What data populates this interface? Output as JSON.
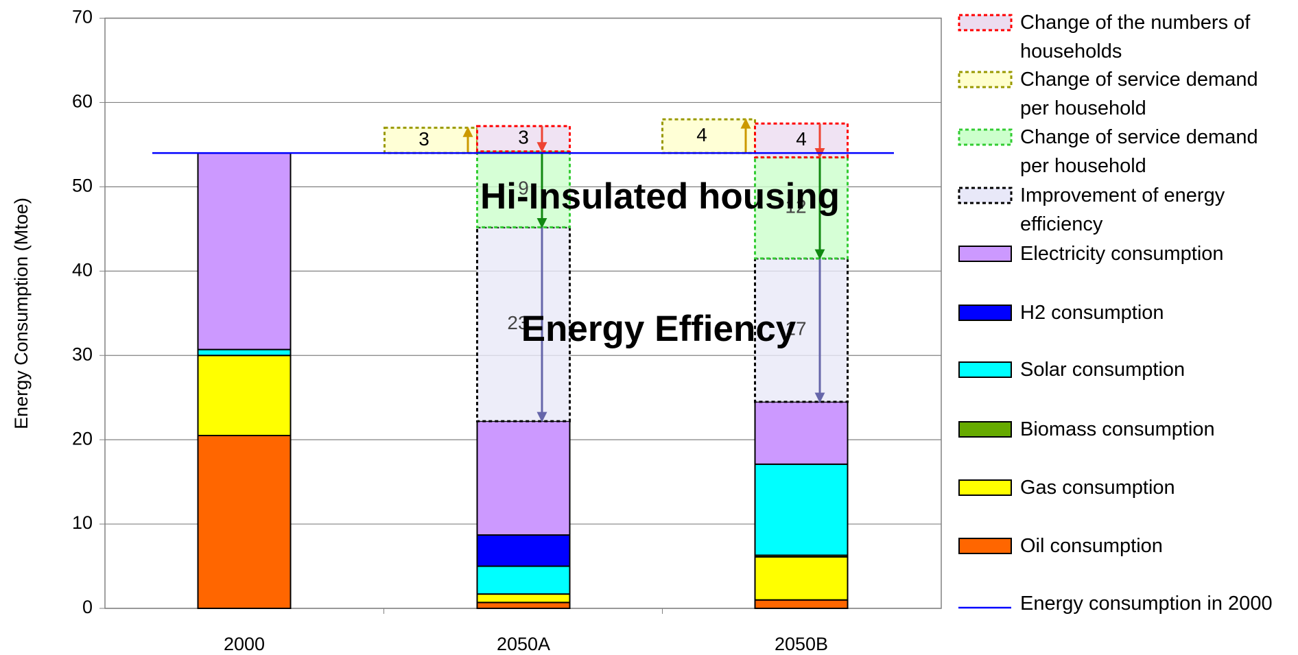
{
  "chart_data": {
    "type": "bar",
    "ylabel": "Energy Consumption (Mtoe)",
    "categories": [
      "2000",
      "2050A",
      "2050B"
    ],
    "ylim": [
      0,
      70
    ],
    "yticks": [
      0,
      10,
      20,
      30,
      40,
      50,
      60,
      70
    ],
    "grid": true,
    "series": [
      {
        "name": "Change of the numbers of households",
        "color": "#ff0000",
        "fill": "#ecdcf0",
        "style": "dashed",
        "values": [
          null,
          3,
          4
        ]
      },
      {
        "name": "Change of service demand per household",
        "color": "#999900",
        "fill": "#ffffcc",
        "style": "dashed",
        "stacked": false,
        "values": [
          null,
          3,
          4
        ]
      },
      {
        "name": "Change of service demand per household",
        "color": "#33cc33",
        "fill": "#ccffcc",
        "style": "dashed",
        "values": [
          null,
          9,
          12
        ]
      },
      {
        "name": "Improvement of energy efficiency",
        "color": "#000000",
        "fill": "#e8e8f8",
        "style": "dashed",
        "values": [
          null,
          23,
          17
        ]
      },
      {
        "name": "Electricity consumption",
        "color": "#cc99ff",
        "values": [
          23.3,
          13.5,
          7.4
        ]
      },
      {
        "name": "H2 consumption",
        "color": "#0000ff",
        "values": [
          0,
          3.7,
          0
        ]
      },
      {
        "name": "Solar  consumption",
        "color": "#00ffff",
        "values": [
          0.7,
          3.3,
          10.8
        ]
      },
      {
        "name": "Biomass consumption",
        "color": "#66aa00",
        "values": [
          0,
          0,
          0.2
        ]
      },
      {
        "name": "Gas consumption",
        "color": "#ffff00",
        "values": [
          9.5,
          1.0,
          5.1
        ]
      },
      {
        "name": "Oil consumption",
        "color": "#ff6600",
        "values": [
          20.5,
          0.7,
          1.0
        ]
      },
      {
        "name": "Energy consumption in 2000",
        "color": "#0000ff",
        "type": "line",
        "value": 54
      }
    ],
    "annotations": [
      "Hi-Insulated housing",
      "Energy Effiency"
    ]
  }
}
